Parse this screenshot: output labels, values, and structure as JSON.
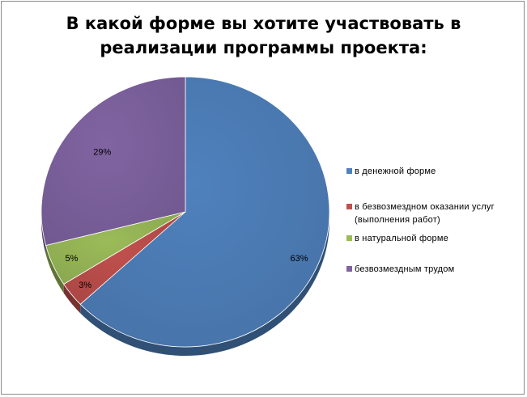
{
  "chart_data": {
    "type": "pie",
    "title": "В какой форме вы хотите участвовать в реализации программы проекта:",
    "title_lines": [
      "В какой форме вы хотите участвовать в",
      "реализации программы проекта:"
    ],
    "slices": [
      {
        "label": "в денежной форме",
        "value": 63,
        "display": "63%",
        "color": "#4f81bd"
      },
      {
        "label": "в безвозмездном оказании услуг\n(выполнения работ)",
        "value": 3,
        "display": "3%",
        "color": "#c0504d"
      },
      {
        "label": "в натуральной форме",
        "value": 5,
        "display": "5%",
        "color": "#9bbb59"
      },
      {
        "label": "безвозмездным трудом",
        "value": 29,
        "display": "29%",
        "color": "#8064a2"
      }
    ],
    "legend_position": "right",
    "start_angle_deg": 0,
    "direction": "clockwise",
    "style": "3d-tilted"
  }
}
